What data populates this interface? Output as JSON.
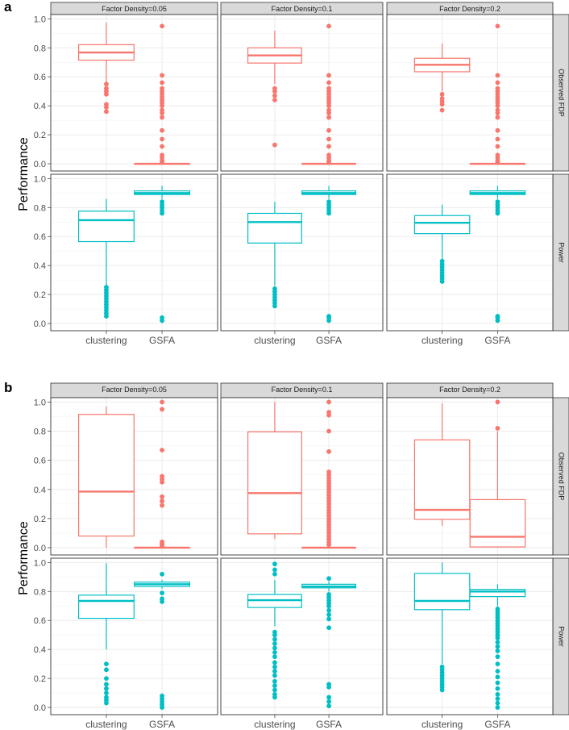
{
  "colors": {
    "fdp": "#F8766D",
    "power": "#00BFC4",
    "panel_border": "#333333",
    "grid": "#ebebeb",
    "strip_fill": "#d9d9d9",
    "text": "#1a1a1a",
    "tick_text": "#4d4d4d"
  },
  "chart_data": [
    {
      "type": "boxplot",
      "panel_label": "a",
      "ylabel": "Performance",
      "xlabel": "",
      "categories": [
        "clustering",
        "GSFA"
      ],
      "facet_cols": [
        "Factor Density=0.05",
        "Factor Density=0.1",
        "Factor Density=0.2"
      ],
      "facet_rows": [
        "Observed FDP",
        "Power"
      ],
      "ylim": [
        -0.05,
        1.03
      ],
      "yticks": [
        "0.0",
        "0.2",
        "0.4",
        "0.6",
        "0.8",
        "1.0"
      ],
      "facets": [
        {
          "col": "Factor Density=0.05",
          "row": "Observed FDP",
          "boxes": [
            {
              "category": "clustering",
              "min": 0.56,
              "q1": 0.715,
              "median": 0.768,
              "q3": 0.822,
              "max": 0.975,
              "outliers": [
                0.36,
                0.39,
                0.41,
                0.48,
                0.5,
                0.52,
                0.55
              ]
            },
            {
              "category": "GSFA",
              "min": 0.0,
              "q1": 0.0,
              "median": 0.0,
              "q3": 0.0,
              "max": 0.0,
              "outliers": [
                0.01,
                0.02,
                0.04,
                0.06,
                0.12,
                0.17,
                0.23,
                0.32,
                0.35,
                0.37,
                0.4,
                0.42,
                0.44,
                0.46,
                0.48,
                0.5,
                0.52,
                0.56,
                0.61,
                0.95
              ]
            }
          ]
        },
        {
          "col": "Factor Density=0.1",
          "row": "Observed FDP",
          "boxes": [
            {
              "category": "clustering",
              "min": 0.55,
              "q1": 0.695,
              "median": 0.748,
              "q3": 0.8,
              "max": 0.92,
              "outliers": [
                0.13,
                0.44,
                0.47,
                0.5,
                0.52
              ]
            },
            {
              "category": "GSFA",
              "min": 0.0,
              "q1": 0.0,
              "median": 0.0,
              "q3": 0.0,
              "max": 0.0,
              "outliers": [
                0.01,
                0.02,
                0.04,
                0.06,
                0.12,
                0.17,
                0.23,
                0.32,
                0.35,
                0.37,
                0.4,
                0.42,
                0.44,
                0.46,
                0.48,
                0.5,
                0.52,
                0.56,
                0.61,
                0.95
              ]
            }
          ]
        },
        {
          "col": "Factor Density=0.2",
          "row": "Observed FDP",
          "boxes": [
            {
              "category": "clustering",
              "min": 0.5,
              "q1": 0.635,
              "median": 0.683,
              "q3": 0.728,
              "max": 0.83,
              "outliers": [
                0.37,
                0.41,
                0.43,
                0.45,
                0.48
              ]
            },
            {
              "category": "GSFA",
              "min": 0.0,
              "q1": 0.0,
              "median": 0.0,
              "q3": 0.0,
              "max": 0.0,
              "outliers": [
                0.01,
                0.02,
                0.04,
                0.06,
                0.12,
                0.17,
                0.23,
                0.32,
                0.35,
                0.37,
                0.4,
                0.42,
                0.44,
                0.46,
                0.48,
                0.5,
                0.52,
                0.56,
                0.61,
                0.95
              ]
            }
          ]
        },
        {
          "col": "Factor Density=0.05",
          "row": "Power",
          "boxes": [
            {
              "category": "clustering",
              "min": 0.26,
              "q1": 0.565,
              "median": 0.713,
              "q3": 0.775,
              "max": 0.86,
              "outliers": [
                0.05,
                0.07,
                0.09,
                0.11,
                0.13,
                0.15,
                0.17,
                0.19,
                0.21,
                0.23,
                0.25
              ]
            },
            {
              "category": "GSFA",
              "min": 0.86,
              "q1": 0.89,
              "median": 0.9,
              "q3": 0.915,
              "max": 0.95,
              "outliers": [
                0.02,
                0.04,
                0.76,
                0.78,
                0.8,
                0.82,
                0.84
              ]
            }
          ]
        },
        {
          "col": "Factor Density=0.1",
          "row": "Power",
          "boxes": [
            {
              "category": "clustering",
              "min": 0.26,
              "q1": 0.555,
              "median": 0.7,
              "q3": 0.76,
              "max": 0.84,
              "outliers": [
                0.12,
                0.14,
                0.16,
                0.18,
                0.2,
                0.22,
                0.24
              ]
            },
            {
              "category": "GSFA",
              "min": 0.86,
              "q1": 0.89,
              "median": 0.9,
              "q3": 0.915,
              "max": 0.95,
              "outliers": [
                0.02,
                0.04,
                0.05,
                0.76,
                0.78,
                0.8,
                0.82,
                0.84
              ]
            }
          ]
        },
        {
          "col": "Factor Density=0.2",
          "row": "Power",
          "boxes": [
            {
              "category": "clustering",
              "min": 0.44,
              "q1": 0.62,
              "median": 0.695,
              "q3": 0.745,
              "max": 0.82,
              "outliers": [
                0.29,
                0.31,
                0.33,
                0.35,
                0.37,
                0.39,
                0.41,
                0.43
              ]
            },
            {
              "category": "GSFA",
              "min": 0.86,
              "q1": 0.89,
              "median": 0.9,
              "q3": 0.915,
              "max": 0.95,
              "outliers": [
                0.02,
                0.04,
                0.05,
                0.76,
                0.78,
                0.8,
                0.82,
                0.84
              ]
            }
          ]
        }
      ]
    },
    {
      "type": "boxplot",
      "panel_label": "b",
      "ylabel": "Performance",
      "xlabel": "",
      "categories": [
        "clustering",
        "GSFA"
      ],
      "facet_cols": [
        "Factor Density=0.05",
        "Factor Density=0.1",
        "Factor Density=0.2"
      ],
      "facet_rows": [
        "Observed FDP",
        "Power"
      ],
      "ylim": [
        -0.05,
        1.03
      ],
      "yticks": [
        "0.0",
        "0.2",
        "0.4",
        "0.6",
        "0.8",
        "1.0"
      ],
      "facets": [
        {
          "col": "Factor Density=0.05",
          "row": "Observed FDP",
          "boxes": [
            {
              "category": "clustering",
              "min": 0.0,
              "q1": 0.08,
              "median": 0.385,
              "q3": 0.915,
              "max": 0.97,
              "outliers": []
            },
            {
              "category": "GSFA",
              "min": 0.0,
              "q1": 0.0,
              "median": 0.0,
              "q3": 0.0,
              "max": 0.0,
              "outliers": [
                0.01,
                0.02,
                0.03,
                0.04,
                0.29,
                0.32,
                0.35,
                0.45,
                0.47,
                0.49,
                0.67,
                0.95,
                1.0
              ]
            }
          ]
        },
        {
          "col": "Factor Density=0.1",
          "row": "Observed FDP",
          "boxes": [
            {
              "category": "clustering",
              "min": 0.06,
              "q1": 0.095,
              "median": 0.375,
              "q3": 0.795,
              "max": 1.0,
              "outliers": []
            },
            {
              "category": "GSFA",
              "min": 0.0,
              "q1": 0.0,
              "median": 0.0,
              "q3": 0.0,
              "max": 0.0,
              "outliers": [
                0.02,
                0.04,
                0.06,
                0.08,
                0.1,
                0.12,
                0.14,
                0.16,
                0.18,
                0.2,
                0.22,
                0.24,
                0.26,
                0.28,
                0.3,
                0.32,
                0.34,
                0.36,
                0.38,
                0.4,
                0.42,
                0.44,
                0.46,
                0.48,
                0.5,
                0.52,
                0.66,
                0.8,
                0.91,
                0.93,
                1.0
              ]
            }
          ]
        },
        {
          "col": "Factor Density=0.2",
          "row": "Observed FDP",
          "boxes": [
            {
              "category": "clustering",
              "min": 0.15,
              "q1": 0.195,
              "median": 0.26,
              "q3": 0.74,
              "max": 0.99,
              "outliers": []
            },
            {
              "category": "GSFA",
              "min": 0.0,
              "q1": 0.005,
              "median": 0.075,
              "q3": 0.33,
              "max": 0.8,
              "outliers": [
                0.82,
                1.0
              ]
            }
          ]
        },
        {
          "col": "Factor Density=0.05",
          "row": "Power",
          "boxes": [
            {
              "category": "clustering",
              "min": 0.4,
              "q1": 0.615,
              "median": 0.735,
              "q3": 0.775,
              "max": 0.995,
              "outliers": [
                0.03,
                0.05,
                0.07,
                0.1,
                0.13,
                0.16,
                0.2,
                0.26,
                0.3
              ]
            },
            {
              "category": "GSFA",
              "min": 0.82,
              "q1": 0.835,
              "median": 0.85,
              "q3": 0.865,
              "max": 0.88,
              "outliers": [
                0.0,
                0.02,
                0.04,
                0.06,
                0.08,
                0.73,
                0.75,
                0.79,
                0.92
              ]
            }
          ]
        },
        {
          "col": "Factor Density=0.1",
          "row": "Power",
          "boxes": [
            {
              "category": "clustering",
              "min": 0.56,
              "q1": 0.69,
              "median": 0.74,
              "q3": 0.78,
              "max": 0.88,
              "outliers": [
                0.07,
                0.09,
                0.12,
                0.15,
                0.18,
                0.22,
                0.25,
                0.28,
                0.31,
                0.35,
                0.38,
                0.41,
                0.44,
                0.47,
                0.5,
                0.52,
                0.92,
                0.95,
                0.99
              ]
            },
            {
              "category": "GSFA",
              "min": 0.8,
              "q1": 0.825,
              "median": 0.835,
              "q3": 0.85,
              "max": 0.87,
              "outliers": [
                0.01,
                0.04,
                0.07,
                0.14,
                0.16,
                0.55,
                0.61,
                0.64,
                0.67,
                0.7,
                0.72,
                0.74,
                0.76,
                0.78,
                0.89
              ]
            }
          ]
        },
        {
          "col": "Factor Density=0.2",
          "row": "Power",
          "boxes": [
            {
              "category": "clustering",
              "min": 0.3,
              "q1": 0.675,
              "median": 0.735,
              "q3": 0.925,
              "max": 1.0,
              "outliers": [
                0.12,
                0.14,
                0.16,
                0.18,
                0.2,
                0.22,
                0.24,
                0.26,
                0.28
              ]
            },
            {
              "category": "GSFA",
              "min": 0.7,
              "q1": 0.765,
              "median": 0.8,
              "q3": 0.815,
              "max": 0.85,
              "outliers": [
                0.0,
                0.03,
                0.06,
                0.09,
                0.13,
                0.17,
                0.21,
                0.25,
                0.3,
                0.35,
                0.39,
                0.42,
                0.45,
                0.48,
                0.5,
                0.52,
                0.54,
                0.56,
                0.58,
                0.6,
                0.62,
                0.64,
                0.66,
                0.68
              ]
            }
          ]
        }
      ]
    }
  ]
}
